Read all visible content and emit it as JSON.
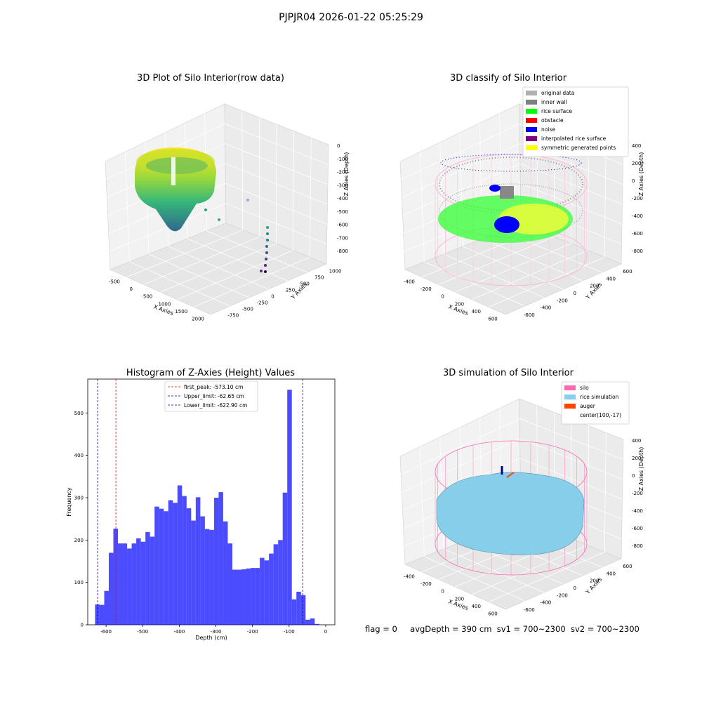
{
  "suptitle": "PJPJR04 2026-01-22 05:25:29",
  "panels": {
    "p1": {
      "title": "3D Plot of Silo Interior(row data)",
      "xlabel": "X Axies",
      "ylabel": "Y Axies",
      "zlabel": "Z Axies (Depth)",
      "xticks": [
        "-500",
        "0",
        "500",
        "1000",
        "1500",
        "2000"
      ],
      "yticks": [
        "-750",
        "-500",
        "-250",
        "0",
        "250",
        "500",
        "750",
        "1000"
      ],
      "zticks": [
        "0",
        "-100",
        "-200",
        "-300",
        "-400",
        "-500",
        "-600",
        "-700",
        "-800"
      ]
    },
    "p2": {
      "title": "3D classify of Silo Interior",
      "xlabel": "X Axies",
      "ylabel": "Y Axies",
      "zlabel": "Z Axies (Depth)",
      "xticks": [
        "-400",
        "-200",
        "0",
        "200",
        "400",
        "600"
      ],
      "yticks": [
        "-600",
        "-400",
        "-200",
        "0",
        "200",
        "400",
        "600"
      ],
      "zticks": [
        "400",
        "200",
        "0",
        "-200",
        "-400",
        "-600",
        "-800"
      ],
      "legend": [
        {
          "label": "original data",
          "color": "#b0b0b0"
        },
        {
          "label": "inner wall",
          "color": "#808080"
        },
        {
          "label": "rice surface",
          "color": "#00ff00"
        },
        {
          "label": "obstacle",
          "color": "#ff0000"
        },
        {
          "label": "noise",
          "color": "#0000ff"
        },
        {
          "label": "interpolated rice surface",
          "color": "#800080"
        },
        {
          "label": "symmetric generated points",
          "color": "#ffff00"
        }
      ]
    },
    "p4": {
      "title": "3D simulation of Silo Interior",
      "xlabel": "X Axies",
      "ylabel": "Y Axies",
      "zlabel": "Z Axies (Depth)",
      "xticks": [
        "-400",
        "-200",
        "0",
        "200",
        "400",
        "600"
      ],
      "yticks": [
        "-600",
        "-400",
        "-200",
        "0",
        "200",
        "400",
        "600"
      ],
      "zticks": [
        "400",
        "200",
        "0",
        "-200",
        "-400",
        "-600",
        "-800"
      ],
      "legend": [
        {
          "label": "silo",
          "color": "#ff69b4"
        },
        {
          "label": "rice simulation",
          "color": "#87ceeb"
        },
        {
          "label": "auger",
          "color": "#ff4500"
        },
        {
          "label": "center(100,-17)",
          "color": ""
        }
      ]
    }
  },
  "chart_data": [
    {
      "type": "bar",
      "title": "Histogram of Z-Axies (Height) Values",
      "xlabel": "Depth (cm)",
      "ylabel": "Frequency",
      "xlim": [
        -650,
        25
      ],
      "ylim": [
        0,
        580
      ],
      "xticks": [
        -600,
        -500,
        -400,
        -300,
        -200,
        -100,
        0
      ],
      "yticks": [
        0,
        100,
        200,
        300,
        400,
        500
      ],
      "bar_color": "#0000ff",
      "bins": {
        "start": -630,
        "width": 12.5,
        "values": [
          48,
          47,
          80,
          170,
          227,
          192,
          192,
          180,
          192,
          204,
          196,
          219,
          208,
          279,
          274,
          268,
          294,
          288,
          329,
          304,
          275,
          246,
          301,
          256,
          226,
          224,
          300,
          313,
          244,
          192,
          130,
          130,
          131,
          133,
          134,
          134,
          158,
          152,
          168,
          190,
          200,
          312,
          555,
          60,
          78,
          70,
          12,
          15,
          2
        ]
      },
      "lines": [
        {
          "label": "first_peak: -573.10 cm",
          "x": -573.1,
          "color": "#ff0000"
        },
        {
          "label": "Upper_limit: -62.65 cm",
          "x": -62.65,
          "color": "#00008b"
        },
        {
          "label": "Lower_limit: -622.90 cm",
          "x": -622.9,
          "color": "#00008b"
        }
      ]
    }
  ],
  "footer": {
    "flag": "flag = 0",
    "avgDepth": "avgDepth = 390 cm",
    "sv1": "sv1 = 700~2300",
    "sv2": "sv2 = 700~2300"
  }
}
